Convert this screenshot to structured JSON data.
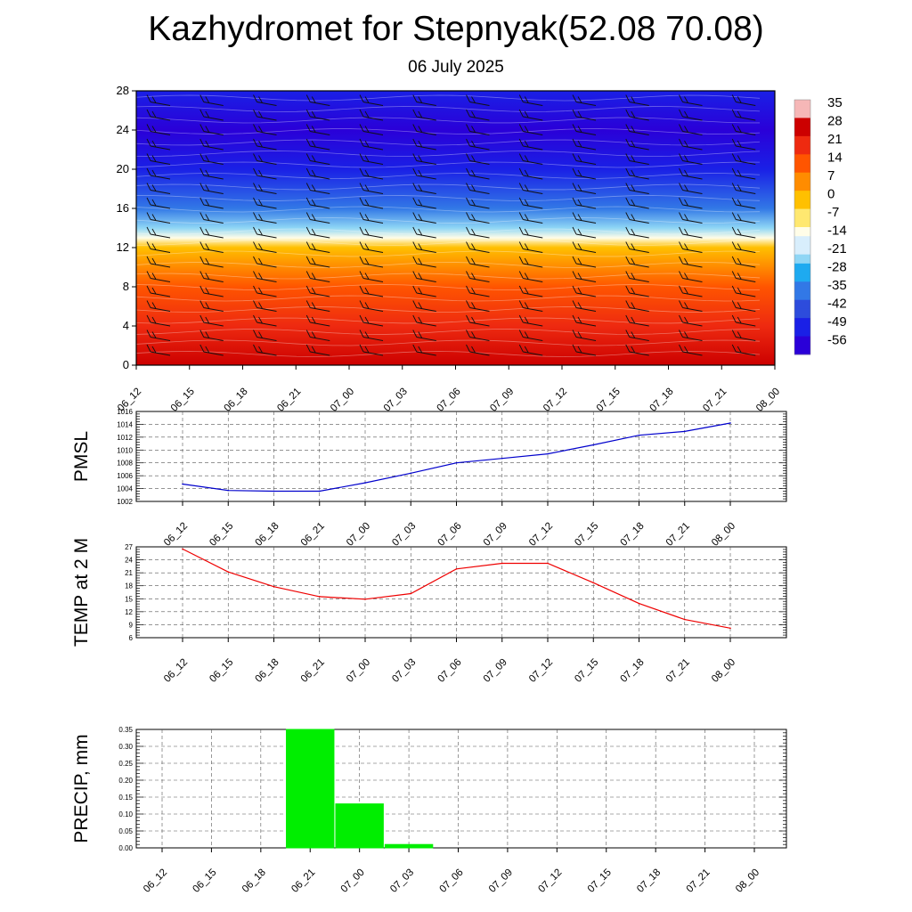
{
  "title": "Kazhydromet for Stepnyak(52.08 70.08)",
  "subtitle": "06 July 2025",
  "chart_data": [
    {
      "type": "heatmap",
      "description": "Vertical cross-section of temperature (color) with wind barbs",
      "x_ticks": [
        "06_12",
        "06_15",
        "06_18",
        "06_21",
        "07_00",
        "07_03",
        "07_06",
        "07_09",
        "07_12",
        "07_15",
        "07_18",
        "07_21",
        "08_00"
      ],
      "y_ticks": [
        "0",
        "4",
        "8",
        "12",
        "16",
        "20",
        "24",
        "28"
      ],
      "ylim": [
        0,
        28
      ],
      "colorbar_labels": [
        "35",
        "28",
        "21",
        "14",
        "7",
        "0",
        "-7",
        "-14",
        "-21",
        "-28",
        "-35",
        "-42",
        "-49",
        "-56"
      ],
      "temperature_by_level": {
        "levels": [
          0,
          4,
          8,
          12,
          13,
          14,
          16,
          20,
          24,
          28
        ],
        "values": [
          30,
          22,
          12,
          0,
          -10,
          -20,
          -35,
          -46,
          -56,
          -52
        ]
      }
    },
    {
      "type": "line",
      "ylabel": "PMSL",
      "x": [
        "06_12",
        "06_15",
        "06_18",
        "06_21",
        "07_00",
        "07_03",
        "07_06",
        "07_09",
        "07_12",
        "07_15",
        "07_18",
        "07_21",
        "08_00"
      ],
      "y_ticks": [
        "1016",
        "1014",
        "1012",
        "1010",
        "1008",
        "1006",
        "1004",
        "1002"
      ],
      "ylim": [
        1002,
        1016
      ],
      "color": "#0000cc",
      "series": [
        {
          "values": [
            1004.7,
            1003.7,
            1003.6,
            1003.6,
            1004.9,
            1006.4,
            1008.0,
            1008.7,
            1009.4,
            1010.8,
            1012.3,
            1012.9,
            1014.2
          ]
        }
      ]
    },
    {
      "type": "line",
      "ylabel": "TEMP at 2 M",
      "x": [
        "06_12",
        "06_15",
        "06_18",
        "06_21",
        "07_00",
        "07_03",
        "07_06",
        "07_09",
        "07_12",
        "07_15",
        "07_18",
        "07_21",
        "08_00"
      ],
      "y_ticks": [
        "27",
        "24",
        "21",
        "18",
        "15",
        "12",
        "9",
        "6"
      ],
      "ylim": [
        6,
        27
      ],
      "color": "#ee0000",
      "series": [
        {
          "values": [
            26.5,
            21.2,
            17.8,
            15.5,
            14.9,
            16.2,
            21.9,
            23.2,
            23.2,
            18.7,
            13.9,
            10.2,
            8.2
          ]
        }
      ]
    },
    {
      "type": "bar",
      "ylabel": "PRECIP, mm",
      "categories": [
        "06_12",
        "06_15",
        "06_18",
        "06_21",
        "07_00",
        "07_03",
        "07_06",
        "07_09",
        "07_12",
        "07_15",
        "07_18",
        "07_21",
        "08_00"
      ],
      "y_ticks": [
        "0.35",
        "0.30",
        "0.25",
        "0.20",
        "0.15",
        "0.10",
        "0.05",
        "0.00"
      ],
      "ylim": [
        0,
        0.35
      ],
      "color": "#00ee00",
      "values": [
        0,
        0,
        0,
        0.35,
        0.13,
        0.01,
        0,
        0,
        0,
        0,
        0,
        0,
        0
      ]
    }
  ]
}
